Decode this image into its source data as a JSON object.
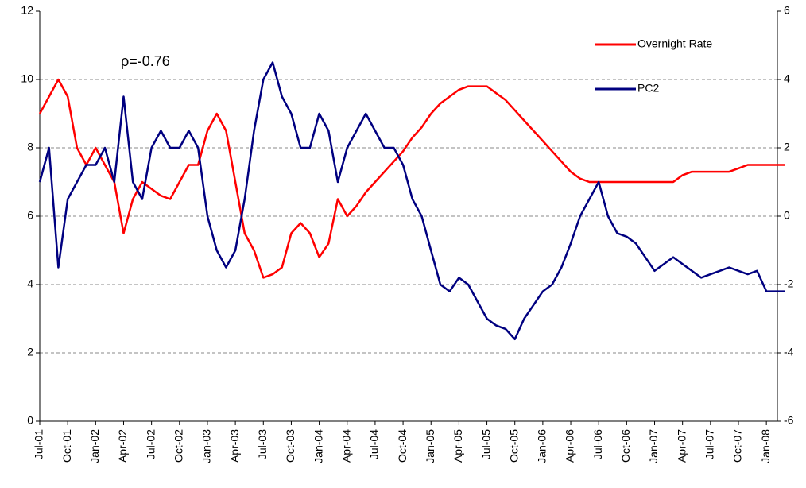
{
  "chart_data": {
    "type": "line",
    "annotations": [
      "ρ=-0.76"
    ],
    "categories": [
      "Jul-01",
      null,
      null,
      "Oct-01",
      null,
      null,
      "Jan-02",
      null,
      null,
      "Apr-02",
      null,
      null,
      "Jul-02",
      null,
      null,
      "Oct-02",
      null,
      null,
      "Jan-03",
      null,
      null,
      "Apr-03",
      null,
      null,
      "Jul-03",
      null,
      null,
      "Oct-03",
      null,
      null,
      "Jan-04",
      null,
      null,
      "Apr-04",
      null,
      null,
      "Jul-04",
      null,
      null,
      "Oct-04",
      null,
      null,
      "Jan-05",
      null,
      null,
      "Apr-05",
      null,
      null,
      "Jul-05",
      null,
      null,
      "Oct-05",
      null,
      null,
      "Jan-06",
      null,
      null,
      "Apr-06",
      null,
      null,
      "Jul-06",
      null,
      null,
      "Oct-06",
      null,
      null,
      "Jan-07",
      null,
      null,
      "Apr-07",
      null,
      null,
      "Jul-07",
      null,
      null,
      "Oct-07",
      null,
      null,
      "Jan-08",
      null,
      null
    ],
    "series": [
      {
        "name": "Overnight Rate",
        "color": "#ff0000",
        "axis": "y",
        "values": [
          9,
          9.5,
          10,
          9.5,
          8,
          7.5,
          8,
          7.5,
          7,
          5.5,
          6.5,
          7,
          6.8,
          6.6,
          6.5,
          7,
          7.5,
          7.5,
          8.5,
          9,
          8.5,
          7,
          5.5,
          5,
          4.2,
          4.3,
          4.5,
          5.5,
          5.8,
          5.5,
          4.8,
          5.2,
          6.5,
          6,
          6.3,
          6.7,
          7,
          7.3,
          7.6,
          7.9,
          8.3,
          8.6,
          9,
          9.3,
          9.5,
          9.7,
          9.8,
          9.8,
          9.8,
          9.6,
          9.4,
          9.1,
          8.8,
          8.5,
          8.2,
          7.9,
          7.6,
          7.3,
          7.1,
          7,
          7,
          7,
          7,
          7,
          7,
          7,
          7,
          7,
          7,
          7.2,
          7.3,
          7.3,
          7.3,
          7.3,
          7.3,
          7.4,
          7.5,
          7.5,
          7.5,
          7.5,
          7.5
        ]
      },
      {
        "name": "PC2",
        "color": "#000080",
        "axis": "y2",
        "values": [
          1,
          2,
          -1.5,
          0.5,
          1,
          1.5,
          1.5,
          2,
          1,
          3.5,
          1,
          0.5,
          2,
          2.5,
          2,
          2,
          2.5,
          2,
          0,
          -1,
          -1.5,
          -1,
          0.5,
          2.5,
          4,
          4.5,
          3.5,
          3,
          2,
          2,
          3,
          2.5,
          1,
          2,
          2.5,
          3,
          2.5,
          2,
          2,
          1.5,
          0.5,
          0,
          -1,
          -2,
          -2.2,
          -1.8,
          -2,
          -2.5,
          -3,
          -3.2,
          -3.3,
          -3.6,
          -3,
          -2.6,
          -2.2,
          -2,
          -1.5,
          -0.8,
          0,
          0.5,
          1,
          0,
          -0.5,
          -0.6,
          -0.8,
          -1.2,
          -1.6,
          -1.4,
          -1.2,
          -1.4,
          -1.6,
          -1.8,
          -1.7,
          -1.6,
          -1.5,
          -1.6,
          -1.7,
          -1.6,
          -2.2,
          -2.2,
          -2.2
        ]
      }
    ],
    "ylim": [
      0,
      12
    ],
    "yticks": [
      0,
      2,
      4,
      6,
      8,
      10,
      12
    ],
    "y2lim": [
      -6,
      6
    ],
    "y2ticks": [
      -6,
      -4,
      -2,
      0,
      2,
      4,
      6
    ],
    "grid": true,
    "legend": "top-right"
  }
}
